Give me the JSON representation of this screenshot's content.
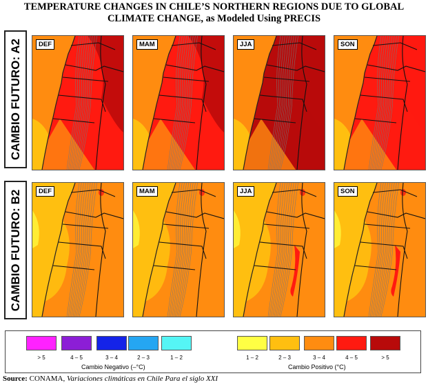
{
  "title": "TEMPERATURE CHANGES IN CHILE’S NORTHERN REGIONS DUE TO GLOBAL CLIMATE CHANGE, as Modeled Using PRECIS",
  "rows": [
    {
      "label": "CAMBIO FUTURO: A2",
      "panels": [
        {
          "season": "DEF",
          "dominant": "4-5"
        },
        {
          "season": "MAM",
          "dominant": "4-5"
        },
        {
          "season": "JJA",
          "dominant": ">5"
        },
        {
          "season": "SON",
          "dominant": "4-5"
        }
      ]
    },
    {
      "label": "CAMBIO FUTURO: B2",
      "panels": [
        {
          "season": "DEF",
          "dominant": "3-4"
        },
        {
          "season": "MAM",
          "dominant": "3-4"
        },
        {
          "season": "JJA",
          "dominant": "3-4"
        },
        {
          "season": "SON",
          "dominant": "3-4"
        }
      ]
    }
  ],
  "colors": {
    "neg_gt5": "#ff22ff",
    "neg_4_5": "#8c1ed6",
    "neg_3_4": "#1423e8",
    "neg_2_3": "#25a6f2",
    "neg_1_2": "#55f5f5",
    "pos_1_2": "#ffff44",
    "pos_2_3": "#ffbf10",
    "pos_3_4": "#ff8c10",
    "pos_4_5": "#ff1a10",
    "pos_gt5": "#b80a0a",
    "ocean_low": "#ffbf10",
    "ocean_high": "#ff8c10"
  },
  "legend": {
    "negative": {
      "caption": "Cambio Negativo (–°C)",
      "items": [
        {
          "label": "> 5",
          "color": "#ff22ff"
        },
        {
          "label": "4 – 5",
          "color": "#8c1ed6"
        },
        {
          "label": "3 – 4",
          "color": "#1423e8"
        },
        {
          "label": "2 – 3",
          "color": "#25a6f2"
        },
        {
          "label": "1 – 2",
          "color": "#55f5f5"
        }
      ]
    },
    "positive": {
      "caption": "Cambio Positivo (°C)",
      "items": [
        {
          "label": "1 – 2",
          "color": "#ffff44"
        },
        {
          "label": "2 – 3",
          "color": "#ffbf10"
        },
        {
          "label": "3 – 4",
          "color": "#ff8c10"
        },
        {
          "label": "4 – 5",
          "color": "#ff1a10"
        },
        {
          "label": "> 5",
          "color": "#b80a0a"
        }
      ]
    }
  },
  "source": {
    "prefix": "Source:",
    "org": " CONAMA, ",
    "work": "Variaciones climáticas en Chile Para el siglo XXI"
  }
}
